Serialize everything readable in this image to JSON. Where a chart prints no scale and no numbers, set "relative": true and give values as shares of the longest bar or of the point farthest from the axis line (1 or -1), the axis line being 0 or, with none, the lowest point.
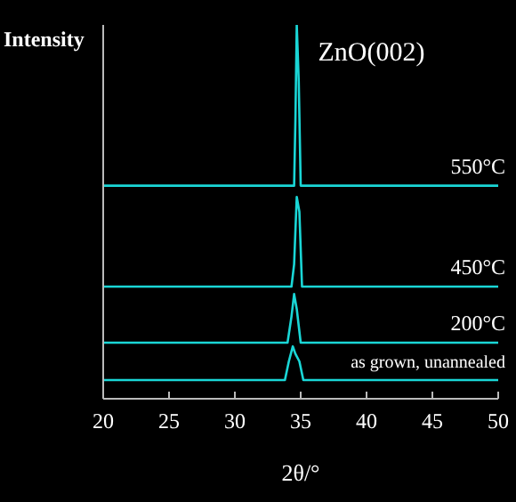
{
  "chart_data": {
    "type": "line",
    "relative": true,
    "xlabel": "2θ/°",
    "ylabel": "Intensity",
    "annotations": [
      {
        "text": "ZnO(002)",
        "x": 34.7,
        "y": 1.0
      }
    ],
    "xlim": [
      20,
      50
    ],
    "xticks": [
      20,
      25,
      30,
      35,
      40,
      45,
      50
    ],
    "grid": false,
    "legend": false,
    "marker": "none",
    "line_style": "solid",
    "series": [
      {
        "name": "550°C",
        "color": "#1ad6d6",
        "x": [
          20,
          34.5,
          34.6,
          34.7,
          34.85,
          35.0,
          50
        ],
        "values": [
          0.57,
          0.57,
          0.75,
          1.0,
          0.85,
          0.57,
          0.57
        ]
      },
      {
        "name": "450°C",
        "color": "#1ad6d6",
        "x": [
          20,
          34.3,
          34.5,
          34.7,
          34.9,
          35.1,
          50
        ],
        "values": [
          0.3,
          0.3,
          0.36,
          0.54,
          0.5,
          0.3,
          0.3
        ]
      },
      {
        "name": "200°C",
        "color": "#1ad6d6",
        "x": [
          20,
          34.0,
          34.3,
          34.5,
          34.7,
          35.0,
          50
        ],
        "values": [
          0.15,
          0.15,
          0.22,
          0.28,
          0.24,
          0.15,
          0.15
        ]
      },
      {
        "name": "as grown, unannealed",
        "color": "#1ad6d6",
        "x": [
          20,
          33.8,
          34.1,
          34.4,
          34.6,
          34.9,
          35.2,
          50
        ],
        "values": [
          0.05,
          0.05,
          0.1,
          0.14,
          0.12,
          0.1,
          0.05,
          0.05
        ]
      }
    ]
  }
}
